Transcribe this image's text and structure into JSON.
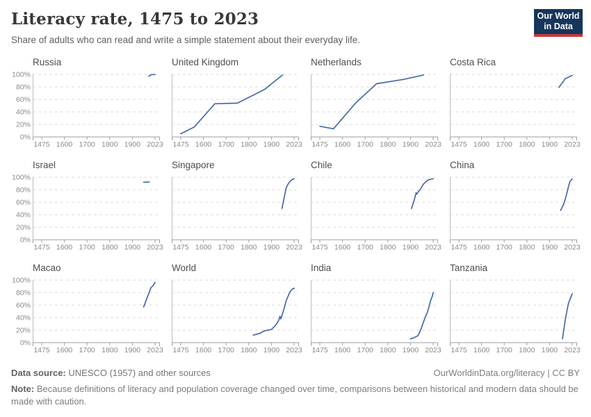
{
  "header": {
    "title": "Literacy rate, 1475 to 2023",
    "subtitle": "Share of adults who can read and write a simple statement about their everyday life."
  },
  "logo": {
    "line1": "Our World",
    "line2": "in Data",
    "bg_color": "#16365c",
    "bar_color": "#c73939"
  },
  "chart_data": {
    "type": "line",
    "title": "Literacy rate, 1475 to 2023",
    "xlabel": "",
    "ylabel": "",
    "xlim": [
      1475,
      2023
    ],
    "ylim": [
      0,
      100
    ],
    "x_ticks": [
      1475,
      1600,
      1700,
      1800,
      1900,
      2023
    ],
    "x_tick_labels": [
      "1475",
      "1600",
      "1700",
      "1800",
      "1900",
      "2023"
    ],
    "y_ticks": [
      0,
      20,
      40,
      60,
      80,
      100
    ],
    "y_tick_labels": [
      "0%",
      "20%",
      "40%",
      "60%",
      "80%",
      "100%"
    ],
    "grid": "horizontal-dashed",
    "legend": "none",
    "line_color": "#4669a5",
    "facets": [
      {
        "title": "Russia",
        "points": [
          [
            1989,
            97
          ],
          [
            2002,
            99.4
          ],
          [
            2010,
            99.7
          ],
          [
            2023,
            99.8
          ]
        ]
      },
      {
        "title": "United Kingdom",
        "points": [
          [
            1475,
            5
          ],
          [
            1550,
            16
          ],
          [
            1650,
            53
          ],
          [
            1750,
            54
          ],
          [
            1870,
            76
          ],
          [
            1960,
            99
          ]
        ]
      },
      {
        "title": "Netherlands",
        "points": [
          [
            1475,
            17
          ],
          [
            1550,
            13
          ],
          [
            1660,
            55
          ],
          [
            1750,
            85
          ],
          [
            1870,
            92
          ],
          [
            1970,
            99
          ]
        ]
      },
      {
        "title": "Costa Rica",
        "points": [
          [
            1950,
            79
          ],
          [
            1963,
            84
          ],
          [
            1973,
            88
          ],
          [
            1984,
            93
          ],
          [
            2000,
            95
          ],
          [
            2011,
            97
          ],
          [
            2023,
            98
          ]
        ]
      },
      {
        "title": "Israel",
        "points": [
          [
            1961,
            92
          ],
          [
            1992,
            92.5
          ]
        ]
      },
      {
        "title": "Singapore",
        "points": [
          [
            1957,
            50
          ],
          [
            1970,
            69
          ],
          [
            1980,
            83
          ],
          [
            1990,
            89
          ],
          [
            2000,
            93
          ],
          [
            2010,
            96
          ],
          [
            2023,
            97.5
          ]
        ]
      },
      {
        "title": "Chile",
        "points": [
          [
            1905,
            50
          ],
          [
            1920,
            63
          ],
          [
            1930,
            75
          ],
          [
            1934,
            73
          ],
          [
            1942,
            77
          ],
          [
            1952,
            80
          ],
          [
            1970,
            89
          ],
          [
            1992,
            95
          ],
          [
            2010,
            97
          ],
          [
            2023,
            97.5
          ]
        ]
      },
      {
        "title": "China",
        "points": [
          [
            1960,
            47
          ],
          [
            1978,
            58
          ],
          [
            1990,
            70
          ],
          [
            2000,
            82
          ],
          [
            2010,
            93
          ],
          [
            2023,
            97
          ]
        ]
      },
      {
        "title": "Macao",
        "points": [
          [
            1961,
            57
          ],
          [
            2001,
            88
          ],
          [
            2008,
            90
          ],
          [
            2013,
            91
          ],
          [
            2023,
            96.5
          ]
        ]
      },
      {
        "title": "World",
        "points": [
          [
            1820,
            12
          ],
          [
            1850,
            15
          ],
          [
            1870,
            19
          ],
          [
            1900,
            21
          ],
          [
            1920,
            27
          ],
          [
            1930,
            31
          ],
          [
            1940,
            36
          ],
          [
            1946,
            42
          ],
          [
            1951,
            38
          ],
          [
            1960,
            46
          ],
          [
            1970,
            56
          ],
          [
            1980,
            67
          ],
          [
            1990,
            74
          ],
          [
            2000,
            81
          ],
          [
            2010,
            85
          ],
          [
            2023,
            87
          ]
        ]
      },
      {
        "title": "India",
        "points": [
          [
            1900,
            6
          ],
          [
            1920,
            8
          ],
          [
            1940,
            11
          ],
          [
            1950,
            17
          ],
          [
            1960,
            24
          ],
          [
            1970,
            33
          ],
          [
            1981,
            41
          ],
          [
            1991,
            48
          ],
          [
            2001,
            58
          ],
          [
            2011,
            69
          ],
          [
            2018,
            74
          ],
          [
            2023,
            80
          ]
        ]
      },
      {
        "title": "Tanzania",
        "points": [
          [
            1970,
            6
          ],
          [
            1986,
            38
          ],
          [
            2002,
            62
          ],
          [
            2012,
            70
          ],
          [
            2023,
            78
          ]
        ]
      }
    ]
  },
  "footer": {
    "datasource_label": "Data source:",
    "datasource_text": "UNESCO (1957) and other sources",
    "credit": "OurWorldinData.org/literacy | CC BY",
    "note_label": "Note:",
    "note_text": "Because definitions of literacy and population coverage changed over time, comparisons between historical and modern data should be made with caution."
  }
}
